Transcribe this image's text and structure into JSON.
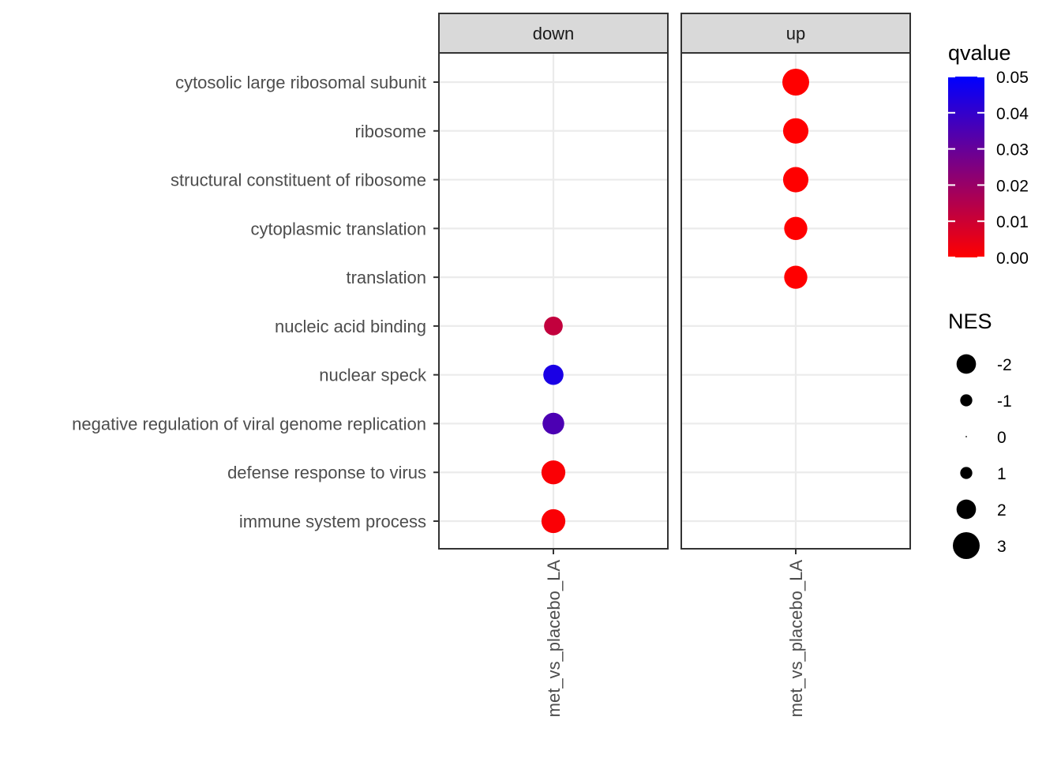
{
  "chart_data": {
    "type": "scatter",
    "facets": [
      "down",
      "up"
    ],
    "x_categories": [
      "met_vs_placebo_LA"
    ],
    "y_categories": [
      "cytosolic large ribosomal subunit",
      "ribosome",
      "structural constituent of ribosome",
      "cytoplasmic translation",
      "translation",
      "nucleic acid binding",
      "nuclear speck",
      "negative regulation of viral genome replication",
      "defense response to virus",
      "immune system process"
    ],
    "points": [
      {
        "facet": "up",
        "x": "met_vs_placebo_LA",
        "y": "cytosolic large ribosomal subunit",
        "NES": 3.0,
        "qvalue": 0.0
      },
      {
        "facet": "up",
        "x": "met_vs_placebo_LA",
        "y": "ribosome",
        "NES": 2.8,
        "qvalue": 0.0
      },
      {
        "facet": "up",
        "x": "met_vs_placebo_LA",
        "y": "structural constituent of ribosome",
        "NES": 2.8,
        "qvalue": 0.0
      },
      {
        "facet": "up",
        "x": "met_vs_placebo_LA",
        "y": "cytoplasmic translation",
        "NES": 2.5,
        "qvalue": 0.0
      },
      {
        "facet": "up",
        "x": "met_vs_placebo_LA",
        "y": "translation",
        "NES": 2.5,
        "qvalue": 0.0
      },
      {
        "facet": "down",
        "x": "met_vs_placebo_LA",
        "y": "nucleic acid binding",
        "NES": -1.9,
        "qvalue": 0.012
      },
      {
        "facet": "down",
        "x": "met_vs_placebo_LA",
        "y": "nuclear speck",
        "NES": -2.1,
        "qvalue": 0.045
      },
      {
        "facet": "down",
        "x": "met_vs_placebo_LA",
        "y": "negative regulation of viral genome replication",
        "NES": -2.3,
        "qvalue": 0.035
      },
      {
        "facet": "down",
        "x": "met_vs_placebo_LA",
        "y": "defense response to virus",
        "NES": -2.6,
        "qvalue": 0.001
      },
      {
        "facet": "down",
        "x": "met_vs_placebo_LA",
        "y": "immune system process",
        "NES": -2.6,
        "qvalue": 0.001
      }
    ],
    "color_legend": {
      "title": "qvalue",
      "low_color": "#ff0000",
      "high_color": "#0000ff",
      "range": [
        0.0,
        0.05
      ],
      "ticks": [
        "0.05",
        "0.04",
        "0.03",
        "0.02",
        "0.01",
        "0.00"
      ]
    },
    "size_legend": {
      "title": "NES",
      "entries": [
        {
          "label": "-2",
          "value": -2
        },
        {
          "label": "-1",
          "value": -1
        },
        {
          "label": "0",
          "value": 0
        },
        {
          "label": "1",
          "value": 1
        },
        {
          "label": "2",
          "value": 2
        },
        {
          "label": "3",
          "value": 3
        }
      ]
    },
    "grid": true,
    "legend_position": "right"
  }
}
